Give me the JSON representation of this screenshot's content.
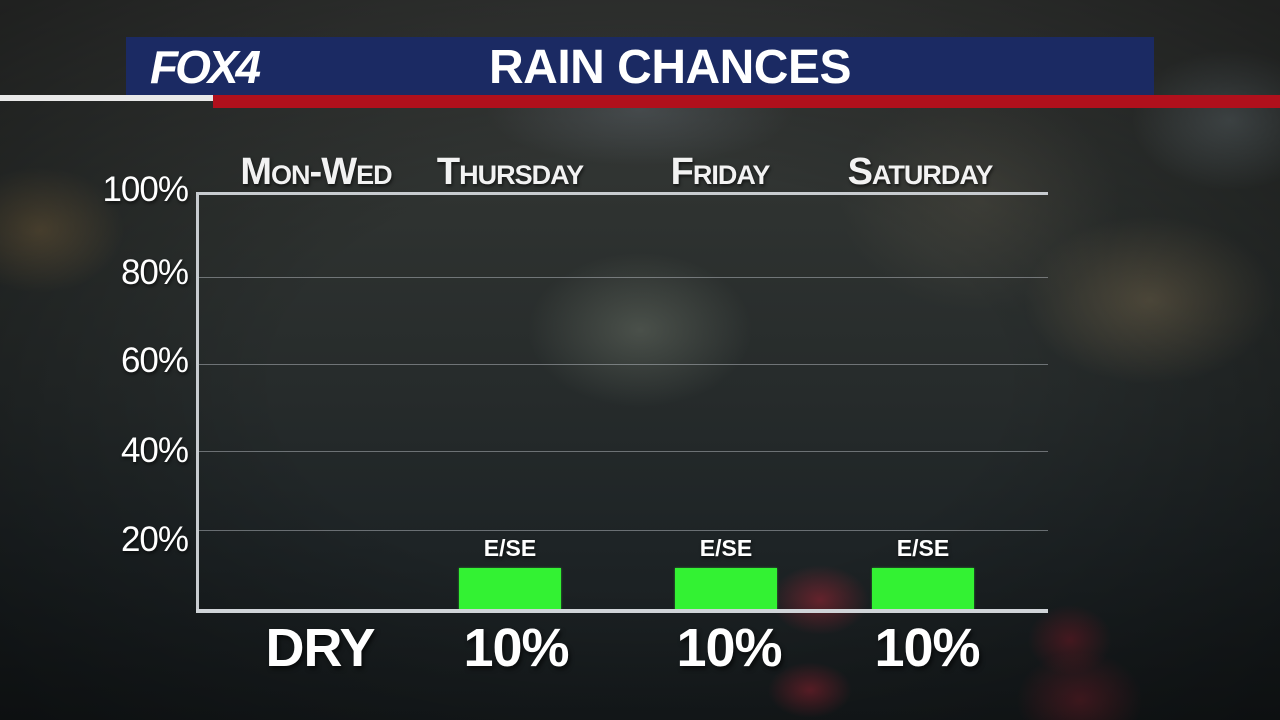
{
  "header": {
    "logo": "FOX4",
    "title": "RAIN CHANCES"
  },
  "colors": {
    "banner": "#1b2a63",
    "stripe": "#b0101c",
    "bar": "#33f233"
  },
  "chart_data": {
    "type": "bar",
    "title": "RAIN CHANCES",
    "categories": [
      "Mon-Wed",
      "Thursday",
      "Friday",
      "Saturday"
    ],
    "values": [
      0,
      10,
      10,
      10
    ],
    "bar_labels": [
      "",
      "E/SE",
      "E/SE",
      "E/SE"
    ],
    "value_labels": [
      "DRY",
      "10%",
      "10%",
      "10%"
    ],
    "ylim": [
      0,
      100
    ],
    "yticks": [
      "100%",
      "80%",
      "60%",
      "40%",
      "20%"
    ],
    "grid": true
  }
}
